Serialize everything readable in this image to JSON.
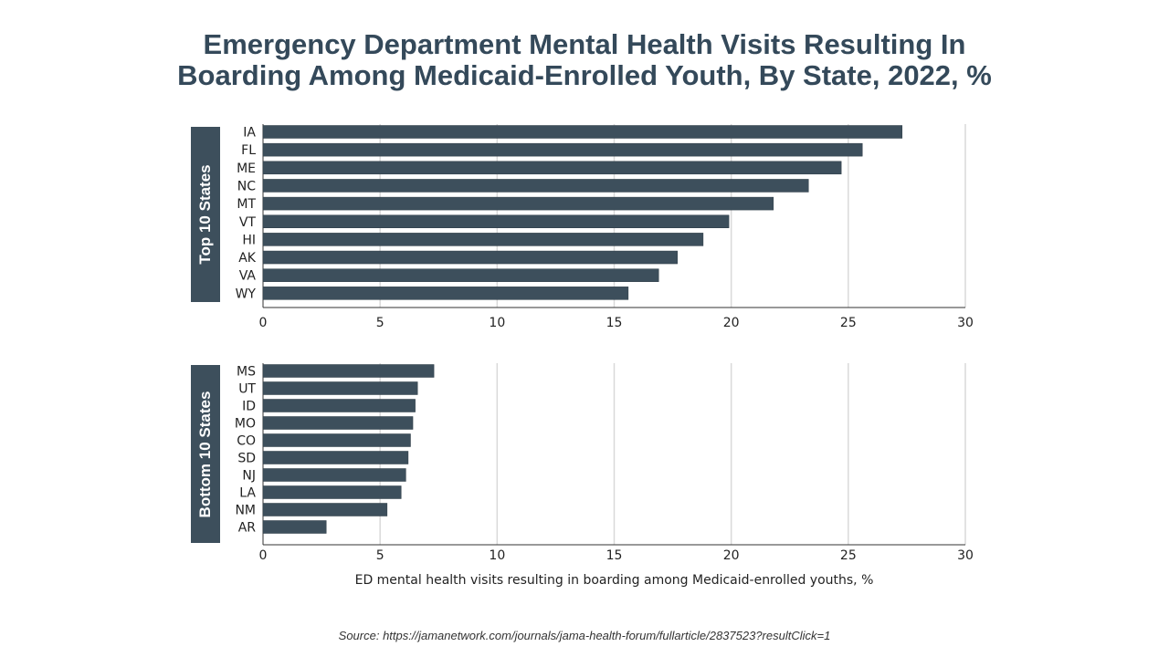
{
  "title": {
    "line1": "Emergency Department Mental Health Visits Resulting In",
    "line2": "Boarding Among Medicaid-Enrolled Youth, By State, 2022, %"
  },
  "source": "Source: https://jamanetwork.com/journals/jama-health-forum/fullarticle/2837523?resultClick=1",
  "colors": {
    "bar": "#3d4f5c",
    "panel_label_bg": "#3d4f5c",
    "title": "#34495a",
    "grid": "#d9d9d9"
  },
  "chart_data": [
    {
      "type": "bar",
      "orientation": "horizontal",
      "panel_label": "Top 10 States",
      "categories": [
        "IA",
        "FL",
        "ME",
        "NC",
        "MT",
        "VT",
        "HI",
        "AK",
        "VA",
        "WY"
      ],
      "values": [
        27.3,
        25.6,
        24.7,
        23.3,
        21.8,
        19.9,
        18.8,
        17.7,
        16.9,
        15.6
      ],
      "xlim": [
        0,
        30
      ],
      "xticks": [
        0,
        5,
        10,
        15,
        20,
        25,
        30
      ],
      "xlabel": "",
      "grid": true
    },
    {
      "type": "bar",
      "orientation": "horizontal",
      "panel_label": "Bottom 10 States",
      "categories": [
        "MS",
        "UT",
        "ID",
        "MO",
        "CO",
        "SD",
        "NJ",
        "LA",
        "NM",
        "AR"
      ],
      "values": [
        7.3,
        6.6,
        6.5,
        6.4,
        6.3,
        6.2,
        6.1,
        5.9,
        5.3,
        2.7
      ],
      "xlim": [
        0,
        30
      ],
      "xticks": [
        0,
        5,
        10,
        15,
        20,
        25,
        30
      ],
      "xlabel": "ED mental health visits resulting in boarding among Medicaid-enrolled youths, %",
      "grid": true
    }
  ]
}
